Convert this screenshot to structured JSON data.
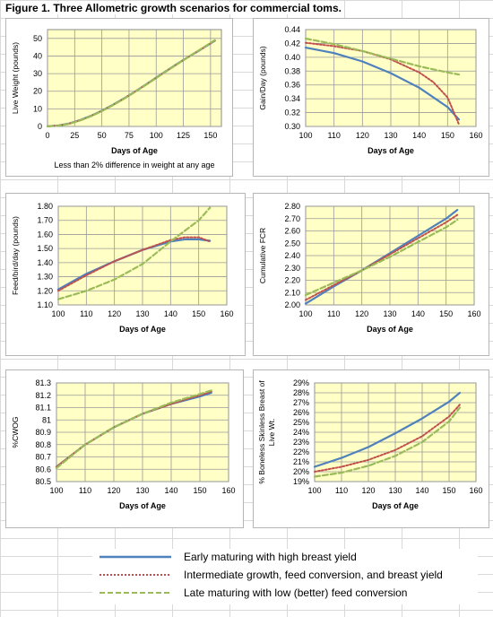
{
  "figure_title": "Figure 1.  Three Allometric growth scenarios for commercial toms.",
  "colors": {
    "plot_bg": "#ffffc6",
    "early": "#4f81bd",
    "intermediate": "#c0504d",
    "late": "#9bbb59"
  },
  "legend": [
    {
      "key": "early",
      "label": "Early maturing  with high breast yield"
    },
    {
      "key": "intermediate",
      "label": "Intermediate growth, feed conversion, and breast yield"
    },
    {
      "key": "late",
      "label": "Late maturing with low (better) feed conversion"
    }
  ],
  "chart_data": [
    {
      "type": "line",
      "xlabel": "Days of Age",
      "ylabel": "Live Weight (pounds)",
      "note": "Less than 2% difference in weight at any age",
      "xlim": [
        0,
        160
      ],
      "ylim": [
        0,
        55
      ],
      "xticks": [
        0,
        25,
        50,
        75,
        100,
        125,
        150
      ],
      "yticks": [
        0,
        10,
        20,
        30,
        40,
        50
      ],
      "ytick_labels": [
        "0",
        "10",
        "20",
        "30",
        "40",
        "50"
      ],
      "series": [
        {
          "key": "early",
          "x": [
            0,
            10,
            20,
            30,
            40,
            50,
            60,
            70,
            80,
            90,
            100,
            110,
            120,
            130,
            140,
            154
          ],
          "y": [
            0.1,
            0.5,
            1.7,
            3.6,
            6.0,
            8.9,
            12.2,
            15.8,
            19.6,
            23.6,
            27.7,
            31.8,
            35.8,
            39.6,
            43.3,
            48.7
          ]
        },
        {
          "key": "intermediate",
          "x": [
            0,
            10,
            20,
            30,
            40,
            50,
            60,
            70,
            80,
            90,
            100,
            110,
            120,
            130,
            140,
            154
          ],
          "y": [
            0.1,
            0.5,
            1.6,
            3.5,
            5.9,
            8.8,
            12.1,
            15.7,
            19.5,
            23.5,
            27.6,
            31.7,
            35.7,
            39.6,
            43.4,
            48.8
          ]
        },
        {
          "key": "late",
          "x": [
            0,
            10,
            20,
            30,
            40,
            50,
            60,
            70,
            80,
            90,
            100,
            110,
            120,
            130,
            140,
            154
          ],
          "y": [
            0.1,
            0.4,
            1.5,
            3.4,
            5.8,
            8.7,
            12.0,
            15.6,
            19.4,
            23.4,
            27.5,
            31.6,
            35.6,
            39.6,
            43.5,
            49.0
          ]
        }
      ]
    },
    {
      "type": "line",
      "xlabel": "Days of Age",
      "ylabel": "Gain/Day (pounds)",
      "xlim": [
        100,
        160
      ],
      "ylim": [
        0.3,
        0.44
      ],
      "xticks": [
        100,
        110,
        120,
        130,
        140,
        150,
        160
      ],
      "yticks": [
        0.3,
        0.32,
        0.34,
        0.36,
        0.38,
        0.4,
        0.42,
        0.44
      ],
      "ytick_labels": [
        "0.30",
        "0.32",
        "0.34",
        "0.36",
        "0.38",
        "0.40",
        "0.42",
        "0.44"
      ],
      "series": [
        {
          "key": "early",
          "x": [
            100,
            110,
            120,
            130,
            140,
            150,
            154
          ],
          "y": [
            0.414,
            0.406,
            0.394,
            0.377,
            0.356,
            0.328,
            0.31
          ]
        },
        {
          "key": "intermediate",
          "x": [
            100,
            110,
            120,
            130,
            140,
            145,
            150,
            154
          ],
          "y": [
            0.421,
            0.416,
            0.409,
            0.397,
            0.378,
            0.364,
            0.342,
            0.303
          ]
        },
        {
          "key": "late",
          "x": [
            100,
            110,
            120,
            130,
            140,
            150,
            154
          ],
          "y": [
            0.427,
            0.419,
            0.409,
            0.398,
            0.387,
            0.378,
            0.375
          ]
        }
      ]
    },
    {
      "type": "line",
      "xlabel": "Days of Age",
      "ylabel": "Feed/bird/day (pounds)",
      "xlim": [
        100,
        160
      ],
      "ylim": [
        1.1,
        1.8
      ],
      "xticks": [
        100,
        110,
        120,
        130,
        140,
        150,
        160
      ],
      "yticks": [
        1.1,
        1.2,
        1.3,
        1.4,
        1.5,
        1.6,
        1.7,
        1.8
      ],
      "ytick_labels": [
        "1.10",
        "1.20",
        "1.30",
        "1.40",
        "1.50",
        "1.60",
        "1.70",
        "1.80"
      ],
      "series": [
        {
          "key": "early",
          "x": [
            100,
            110,
            120,
            130,
            140,
            145,
            150,
            154
          ],
          "y": [
            1.21,
            1.32,
            1.41,
            1.49,
            1.55,
            1.565,
            1.565,
            1.555
          ]
        },
        {
          "key": "intermediate",
          "x": [
            100,
            110,
            120,
            130,
            140,
            145,
            150,
            154
          ],
          "y": [
            1.2,
            1.31,
            1.41,
            1.49,
            1.56,
            1.58,
            1.58,
            1.55
          ]
        },
        {
          "key": "late",
          "x": [
            100,
            110,
            120,
            130,
            140,
            150,
            154
          ],
          "y": [
            1.14,
            1.2,
            1.28,
            1.39,
            1.55,
            1.7,
            1.79
          ]
        }
      ]
    },
    {
      "type": "line",
      "xlabel": "Days of Age",
      "ylabel": "Cumulative FCR",
      "xlim": [
        100,
        160
      ],
      "ylim": [
        2.0,
        2.8
      ],
      "xticks": [
        100,
        110,
        120,
        130,
        140,
        150,
        160
      ],
      "yticks": [
        2.0,
        2.1,
        2.2,
        2.3,
        2.4,
        2.5,
        2.6,
        2.7,
        2.8
      ],
      "ytick_labels": [
        "2.00",
        "2.10",
        "2.20",
        "2.30",
        "2.40",
        "2.50",
        "2.60",
        "2.70",
        "2.80"
      ],
      "series": [
        {
          "key": "early",
          "x": [
            100,
            110,
            120,
            130,
            140,
            150,
            154
          ],
          "y": [
            2.01,
            2.15,
            2.28,
            2.42,
            2.56,
            2.7,
            2.77
          ]
        },
        {
          "key": "intermediate",
          "x": [
            100,
            110,
            120,
            130,
            140,
            150,
            154
          ],
          "y": [
            2.04,
            2.16,
            2.28,
            2.41,
            2.54,
            2.67,
            2.73
          ]
        },
        {
          "key": "late",
          "x": [
            100,
            110,
            120,
            130,
            140,
            150,
            154
          ],
          "y": [
            2.08,
            2.18,
            2.28,
            2.39,
            2.51,
            2.63,
            2.69
          ]
        }
      ]
    },
    {
      "type": "line",
      "xlabel": "Days of Age",
      "ylabel": "%CWOG",
      "xlim": [
        100,
        160
      ],
      "ylim": [
        80.5,
        81.3
      ],
      "xticks": [
        100,
        110,
        120,
        130,
        140,
        150,
        160
      ],
      "yticks": [
        80.5,
        80.6,
        80.7,
        80.8,
        80.9,
        81.0,
        81.1,
        81.2,
        81.3
      ],
      "ytick_labels": [
        "80.5",
        "80.6",
        "80.7",
        "80.8",
        "80.9",
        "81",
        "81.1",
        "81.2",
        "81.3"
      ],
      "series": [
        {
          "key": "early",
          "x": [
            100,
            110,
            120,
            130,
            140,
            150,
            154
          ],
          "y": [
            80.62,
            80.8,
            80.94,
            81.05,
            81.13,
            81.19,
            81.22
          ]
        },
        {
          "key": "intermediate",
          "x": [
            100,
            110,
            120,
            130,
            140,
            150,
            154
          ],
          "y": [
            80.62,
            80.8,
            80.94,
            81.05,
            81.13,
            81.2,
            81.23
          ]
        },
        {
          "key": "late",
          "x": [
            100,
            110,
            120,
            130,
            140,
            150,
            154
          ],
          "y": [
            80.61,
            80.8,
            80.94,
            81.05,
            81.14,
            81.21,
            81.24
          ]
        }
      ]
    },
    {
      "type": "line",
      "xlabel": "Days of Age",
      "ylabel": "% Boneless Skinless Breast of Live Wt.",
      "xlim": [
        100,
        160
      ],
      "ylim": [
        0.19,
        0.29
      ],
      "xticks": [
        100,
        110,
        120,
        130,
        140,
        150,
        160
      ],
      "yticks": [
        0.19,
        0.2,
        0.21,
        0.22,
        0.23,
        0.24,
        0.25,
        0.26,
        0.27,
        0.28,
        0.29
      ],
      "ytick_labels": [
        "19%",
        "20%",
        "21%",
        "22%",
        "23%",
        "24%",
        "25%",
        "26%",
        "27%",
        "28%",
        "29%"
      ],
      "series": [
        {
          "key": "early",
          "x": [
            100,
            110,
            120,
            130,
            140,
            150,
            154
          ],
          "y": [
            0.205,
            0.214,
            0.225,
            0.239,
            0.254,
            0.271,
            0.28
          ]
        },
        {
          "key": "intermediate",
          "x": [
            100,
            110,
            120,
            130,
            140,
            150,
            154
          ],
          "y": [
            0.2,
            0.205,
            0.212,
            0.222,
            0.236,
            0.256,
            0.268
          ]
        },
        {
          "key": "late",
          "x": [
            100,
            110,
            120,
            130,
            140,
            150,
            154
          ],
          "y": [
            0.195,
            0.199,
            0.206,
            0.216,
            0.23,
            0.251,
            0.265
          ]
        }
      ]
    }
  ]
}
